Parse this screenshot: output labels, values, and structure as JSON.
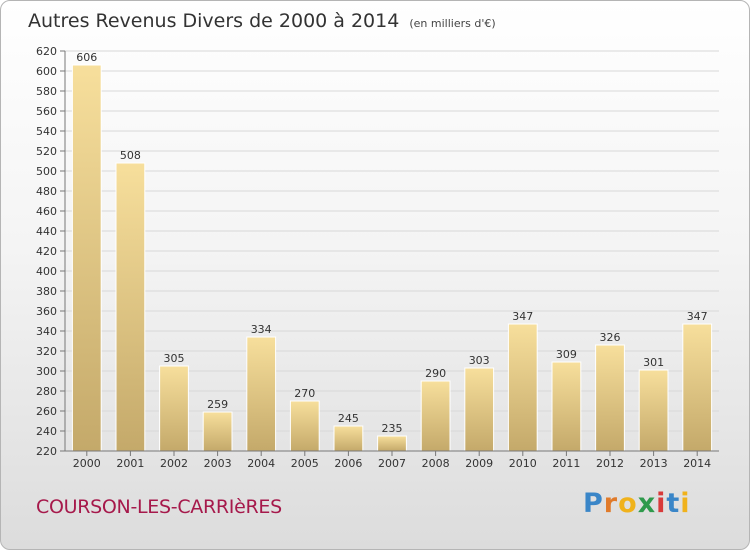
{
  "header": {
    "title": "Autres Revenus Divers de 2000 à 2014",
    "unit": "(en milliers d'€)"
  },
  "footer": {
    "commune": "COURSON-LES-CARRIèRES",
    "logo": "Proxiti"
  },
  "colors": {
    "bar_light": "#f7df9c",
    "bar_dark": "#c4a96a",
    "commune_text": "#a6194b"
  },
  "chart_data": {
    "type": "bar",
    "title": "Autres Revenus Divers de 2000 à 2014",
    "subtitle": "(en milliers d'€)",
    "categories": [
      "2000",
      "2001",
      "2002",
      "2003",
      "2004",
      "2005",
      "2006",
      "2007",
      "2008",
      "2009",
      "2010",
      "2011",
      "2012",
      "2013",
      "2014"
    ],
    "values": [
      606,
      508,
      305,
      259,
      334,
      270,
      245,
      235,
      290,
      303,
      347,
      309,
      326,
      301,
      347
    ],
    "ylim": [
      220,
      620
    ],
    "ytick_step": 20,
    "grid": true,
    "data_labels": true
  }
}
